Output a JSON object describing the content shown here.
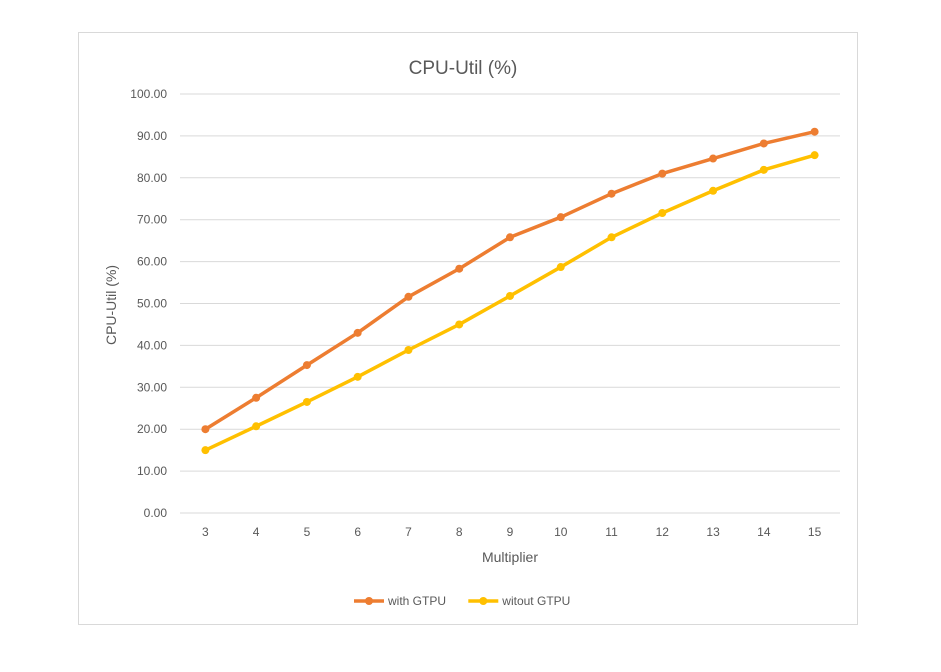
{
  "chart_data": {
    "type": "line",
    "title": "CPU-Util (%)",
    "xlabel": "Multiplier",
    "ylabel": "CPU-Util (%)",
    "categories": [
      "3",
      "4",
      "5",
      "6",
      "7",
      "8",
      "9",
      "10",
      "11",
      "12",
      "13",
      "14",
      "15"
    ],
    "ylim": [
      0,
      100
    ],
    "yticks": [
      "0.00",
      "10.00",
      "20.00",
      "30.00",
      "40.00",
      "50.00",
      "60.00",
      "70.00",
      "80.00",
      "90.00",
      "100.00"
    ],
    "grid": true,
    "legend_position": "bottom",
    "series": [
      {
        "name": "with GTPU",
        "color": "#ED7D31",
        "values": [
          20.0,
          27.5,
          35.3,
          43.0,
          51.6,
          58.3,
          65.8,
          70.6,
          76.2,
          81.0,
          84.6,
          88.2,
          91.0
        ]
      },
      {
        "name": "witout GTPU",
        "color": "#FFC000",
        "values": [
          15.0,
          20.7,
          26.5,
          32.5,
          38.9,
          45.0,
          51.8,
          58.7,
          65.8,
          71.6,
          76.9,
          81.9,
          85.4
        ]
      }
    ]
  }
}
